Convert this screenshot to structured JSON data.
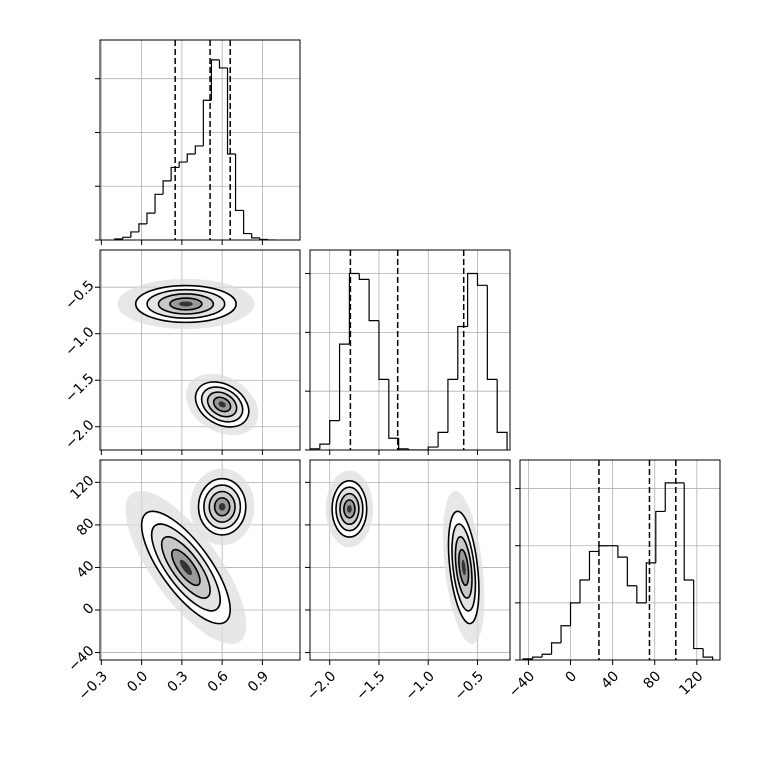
{
  "chart_data": {
    "type": "corner",
    "grid": true,
    "params": [
      {
        "xlim": [
          -0.31,
          1.18
        ],
        "xticks": [
          {
            "value": -0.3,
            "label": "−0.3"
          },
          {
            "value": 0.0,
            "label": "0.0"
          },
          0.3,
          0.6,
          0.9
        ],
        "quantiles": [
          0.25,
          0.51,
          0.66
        ],
        "hist": {
          "ylim": [
            0,
            3.72
          ],
          "yticks": [
            0,
            1,
            2,
            3
          ],
          "bins": [
            -0.2,
            -0.14,
            -0.08,
            -0.02,
            0.04,
            0.1,
            0.16,
            0.22,
            0.28,
            0.34,
            0.4,
            0.46,
            0.52,
            0.58,
            0.64,
            0.7,
            0.76,
            0.82,
            0.88,
            0.94,
            1.0
          ],
          "counts": [
            0.02,
            0.05,
            0.15,
            0.3,
            0.5,
            0.85,
            1.1,
            1.35,
            1.45,
            1.6,
            1.75,
            2.6,
            3.35,
            3.2,
            1.6,
            0.55,
            0.12,
            0.04,
            0.01,
            0
          ]
        }
      },
      {
        "xlim": [
          -2.2,
          -0.17
        ],
        "ylim": [
          -2.25,
          -0.1
        ],
        "xticks": [
          {
            "value": -2.0,
            "label": "−2.0"
          },
          {
            "value": -1.5,
            "label": "−1.5"
          },
          {
            "value": -1.0,
            "label": "−1.0"
          },
          {
            "value": -0.5,
            "label": "−0.5"
          }
        ],
        "yticks": [
          {
            "value": -2.0,
            "label": "−2.0"
          },
          {
            "value": -1.5,
            "label": "−1.5"
          },
          {
            "value": -1.0,
            "label": "−1.0"
          },
          {
            "value": -0.5,
            "label": "−0.5"
          }
        ],
        "quantiles": [
          -1.79,
          -1.31,
          -0.64
        ],
        "hist": {
          "ylim": [
            0,
            3.4
          ],
          "yticks": [
            0,
            1,
            2,
            3
          ],
          "bins": [
            -2.2,
            -2.1,
            -2.0,
            -1.9,
            -1.8,
            -1.7,
            -1.6,
            -1.5,
            -1.4,
            -1.3,
            -1.2,
            -1.1,
            -1.0,
            -0.9,
            -0.8,
            -0.7,
            -0.6,
            -0.5,
            -0.4,
            -0.3,
            -0.2
          ],
          "counts": [
            0.02,
            0.1,
            0.5,
            1.8,
            3.0,
            2.9,
            2.2,
            1.2,
            0.2,
            0.02,
            0,
            0,
            0.05,
            0.3,
            1.2,
            2.1,
            3.0,
            2.8,
            1.2,
            0.3
          ]
        }
      },
      {
        "xlim": [
          -48,
          142
        ],
        "ylim": [
          -47,
          141
        ],
        "xticks": [
          {
            "value": -40,
            "label": "−40"
          },
          0,
          40,
          80,
          120
        ],
        "yticks": [
          {
            "value": -40,
            "label": "−40"
          },
          0,
          40,
          80,
          120
        ],
        "quantiles": [
          27,
          75,
          100
        ],
        "hist": {
          "ylim": [
            0,
            3.5
          ],
          "yticks": [
            0,
            1,
            2,
            3
          ],
          "bins": [
            -45,
            -36,
            -27,
            -18,
            -9,
            0,
            9,
            18,
            27,
            36,
            45,
            54,
            63,
            72,
            81,
            90,
            99,
            108,
            117,
            126,
            135
          ],
          "counts": [
            0.02,
            0.05,
            0.1,
            0.3,
            0.6,
            1.0,
            1.4,
            1.9,
            2.0,
            2.0,
            1.8,
            1.3,
            1.0,
            1.7,
            2.6,
            3.1,
            3.1,
            1.4,
            0.2,
            0.05
          ]
        }
      }
    ],
    "pairs": [
      {
        "x": 0,
        "y": 1,
        "clusters": [
          {
            "cx": 0.33,
            "cy": -0.68,
            "sx": 0.17,
            "sy": 0.09,
            "rho": 0.0
          },
          {
            "cx": 0.6,
            "cy": -1.76,
            "sx": 0.09,
            "sy": 0.11,
            "rho": -0.3
          }
        ]
      },
      {
        "x": 0,
        "y": 2,
        "clusters": [
          {
            "cx": 0.33,
            "cy": 40,
            "sx": 0.15,
            "sy": 24,
            "rho": -0.75
          },
          {
            "cx": 0.6,
            "cy": 97,
            "sx": 0.08,
            "sy": 12,
            "rho": 0.0
          }
        ]
      },
      {
        "x": 1,
        "y": 2,
        "clusters": [
          {
            "cx": -1.8,
            "cy": 95,
            "sx": 0.08,
            "sy": 12,
            "rho": 0.0
          },
          {
            "cx": -0.64,
            "cy": 40,
            "sx": 0.07,
            "sy": 24,
            "rho": -0.4
          }
        ]
      }
    ]
  }
}
